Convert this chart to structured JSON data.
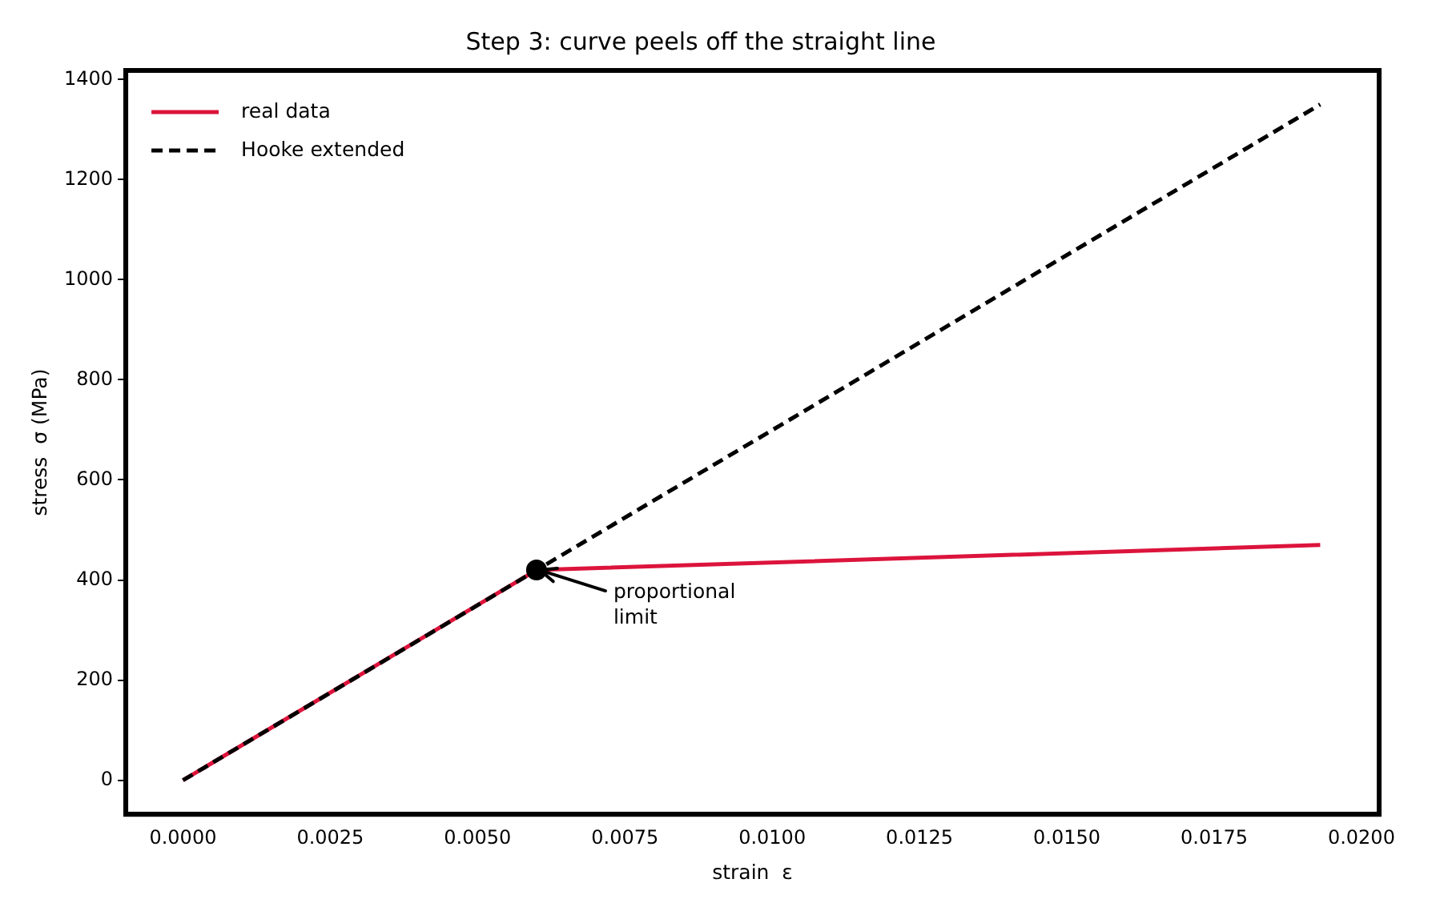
{
  "chart_data": {
    "type": "line",
    "title": "Step 3: curve peels off the straight line",
    "xlabel": "strain  ε",
    "ylabel": "stress  σ (MPa)",
    "series": [
      {
        "name": "real data",
        "color": "#dc143c",
        "x": [
          0,
          0.006,
          0.0193
        ],
        "values": [
          0,
          420,
          470
        ],
        "line_style": "solid",
        "marker": "none"
      },
      {
        "name": "Hooke extended",
        "color": "#000000",
        "x": [
          0,
          0.0193
        ],
        "values": [
          0,
          1350
        ],
        "line_style": "dashed",
        "marker": "none"
      },
      {
        "type": "scatter",
        "color": "#000000",
        "x": [
          0.006
        ],
        "values": [
          420
        ],
        "marker": "circle"
      }
    ],
    "annotations": [
      {
        "text": "proportional\nlimit",
        "x": 0.006,
        "y": 420
      }
    ],
    "xlim": [
      -0.00097,
      0.0203
    ],
    "ylim": [
      -68,
      1418
    ],
    "xticks": [
      {
        "value": 0,
        "label": "0.0000"
      },
      {
        "value": 0.0025,
        "label": "0.0025"
      },
      {
        "value": 0.005,
        "label": "0.0050"
      },
      {
        "value": 0.0075,
        "label": "0.0075"
      },
      {
        "value": 0.01,
        "label": "0.0100"
      },
      {
        "value": 0.0125,
        "label": "0.0125"
      },
      {
        "value": 0.015,
        "label": "0.0150"
      },
      {
        "value": 0.0175,
        "label": "0.0175"
      },
      {
        "value": 0.02,
        "label": "0.0200"
      }
    ],
    "yticks": [
      0,
      200,
      400,
      600,
      800,
      1000,
      1200,
      1400
    ],
    "grid": false,
    "legend": "top left"
  }
}
